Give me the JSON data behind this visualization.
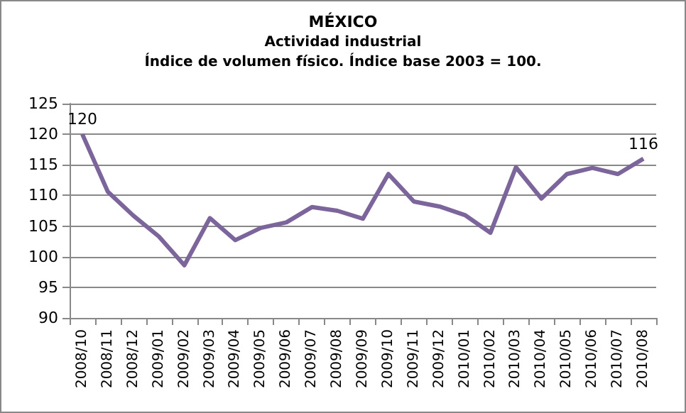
{
  "chart_data": {
    "type": "line",
    "title": "MÉXICO",
    "subtitle": "Actividad industrial\nÍndice de volumen físico. Índice base 2003 = 100.",
    "categories": [
      "2008/10",
      "2008/11",
      "2008/12",
      "2009/01",
      "2009/02",
      "2009/03",
      "2009/04",
      "2009/05",
      "2009/06",
      "2009/07",
      "2009/08",
      "2009/09",
      "2009/10",
      "2009/11",
      "2009/12",
      "2010/01",
      "2010/02",
      "2010/03",
      "2010/04",
      "2010/05",
      "2010/06",
      "2010/07",
      "2010/08"
    ],
    "values": [
      120,
      110.6,
      106.7,
      103.3,
      98.6,
      106.3,
      102.7,
      104.7,
      105.6,
      108.1,
      107.5,
      106.2,
      113.5,
      109,
      108.2,
      106.8,
      103.9,
      114.6,
      109.5,
      113.5,
      114.5,
      113.5,
      116
    ],
    "value_labels": [
      "120",
      null,
      null,
      null,
      null,
      null,
      null,
      null,
      null,
      null,
      null,
      null,
      null,
      null,
      null,
      null,
      null,
      null,
      null,
      null,
      null,
      null,
      "116"
    ],
    "color": "#7b659b",
    "ylim": [
      90,
      125
    ],
    "yticks": [
      90,
      95,
      100,
      105,
      110,
      115,
      120,
      125
    ],
    "grid": "y",
    "marker": "none",
    "line_style": "solid"
  }
}
